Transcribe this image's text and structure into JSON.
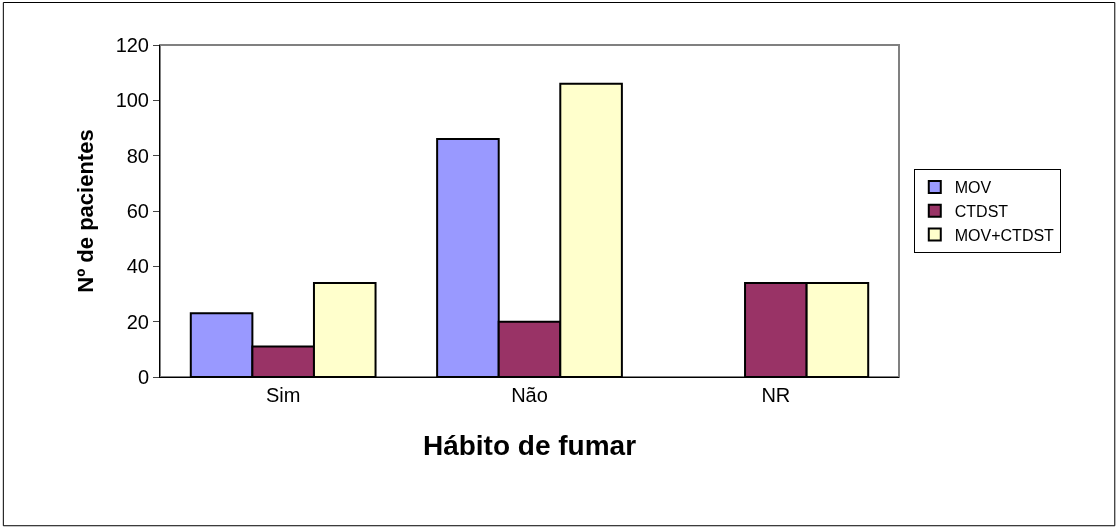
{
  "chart_data": {
    "type": "bar",
    "xlabel": "Hábito de fumar",
    "ylabel": "Nº de pacientes",
    "categories": [
      "Sim",
      "Não",
      "NR"
    ],
    "series": [
      {
        "name": "MOV",
        "color": "#9999ff",
        "values": [
          23,
          86,
          null
        ]
      },
      {
        "name": "CTDST",
        "color": "#993366",
        "values": [
          11,
          20,
          34
        ]
      },
      {
        "name": "MOV+CTDST",
        "color": "#ffffcc",
        "values": [
          34,
          106,
          34
        ]
      }
    ],
    "ylim": [
      0,
      120
    ],
    "yticks": [
      0,
      20,
      40,
      60,
      80,
      100,
      120
    ],
    "grid": false,
    "legend": "right"
  }
}
